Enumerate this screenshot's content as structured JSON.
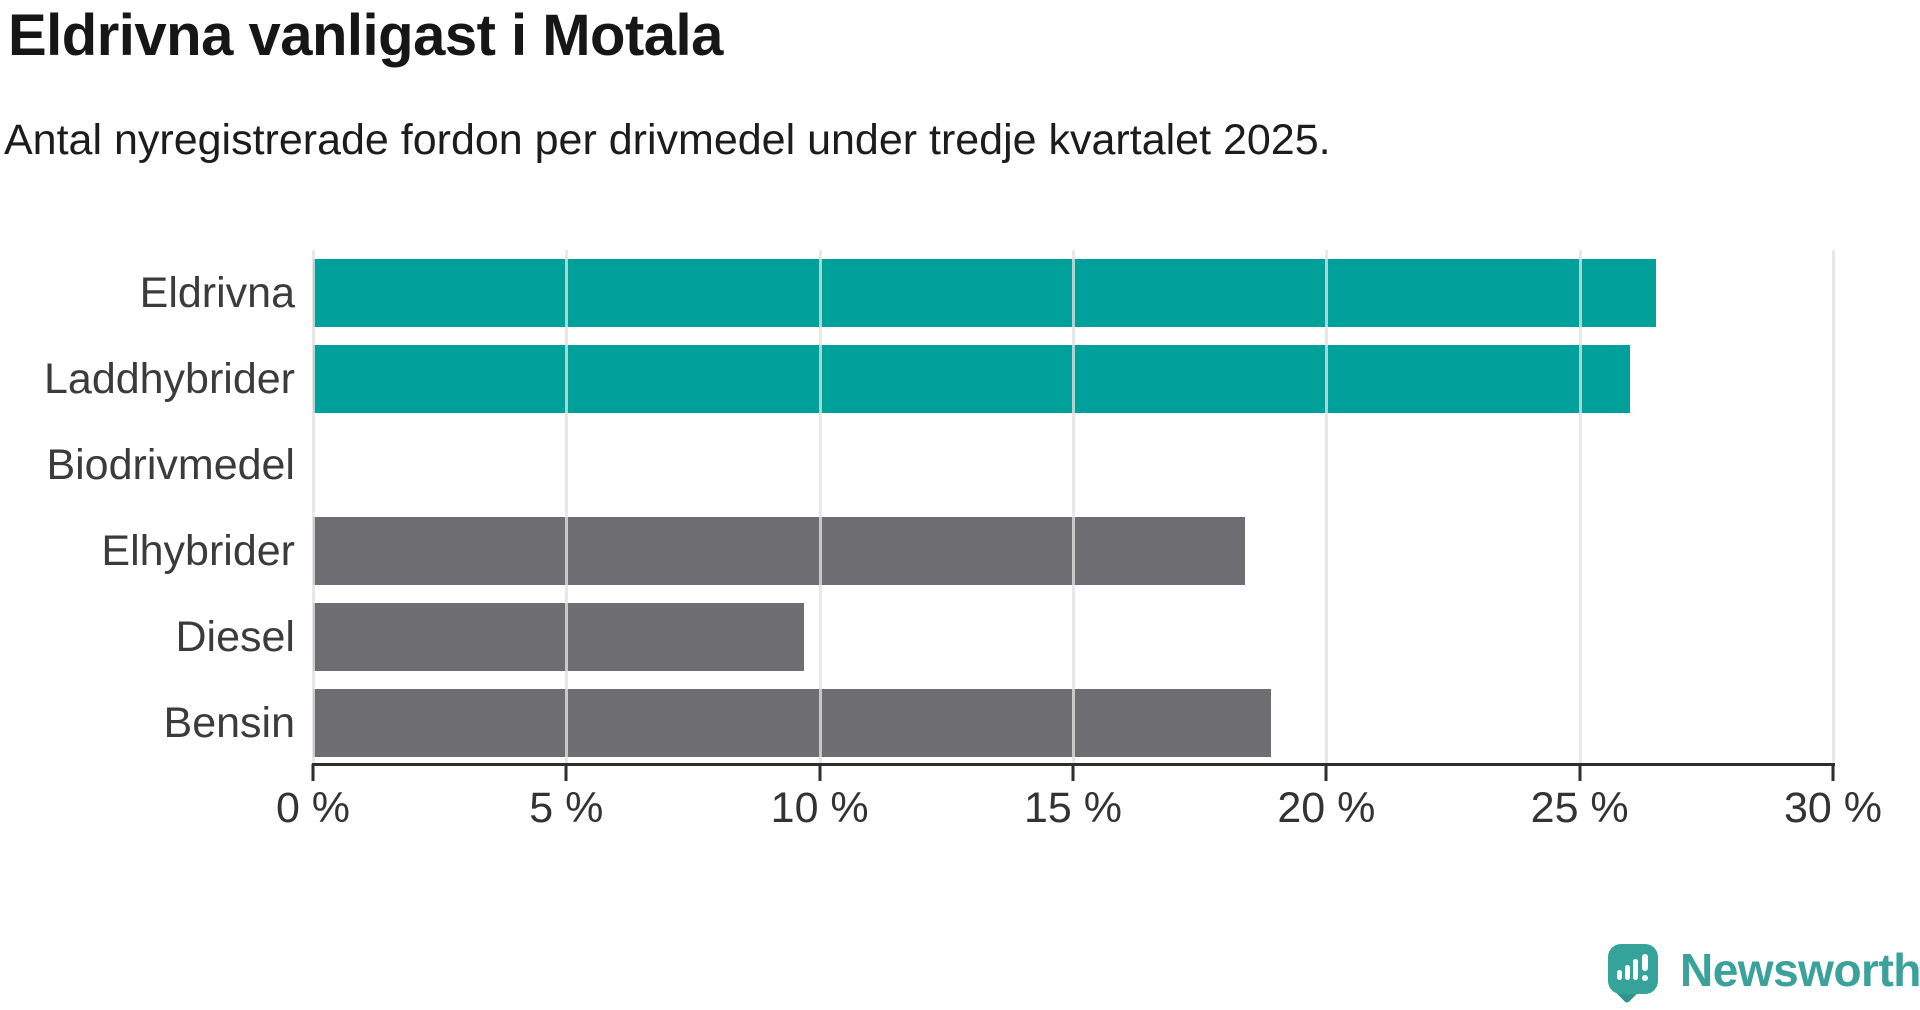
{
  "header": {
    "title": "Eldrivna vanligast i Motala",
    "subtitle": "Antal nyregistrerade fordon per drivmedel under tredje kvartalet 2025."
  },
  "chart_data": {
    "type": "bar",
    "orientation": "horizontal",
    "title": "Eldrivna vanligast i Motala",
    "subtitle": "Antal nyregistrerade fordon per drivmedel under tredje kvartalet 2025.",
    "categories": [
      "Eldrivna",
      "Laddhybrider",
      "Biodrivmedel",
      "Elhybrider",
      "Diesel",
      "Bensin"
    ],
    "values": [
      26.5,
      26.0,
      0,
      18.4,
      9.7,
      18.9
    ],
    "unit": "%",
    "xlim": [
      0,
      30
    ],
    "xticks": [
      0,
      5,
      10,
      15,
      20,
      25,
      30
    ],
    "xtick_labels": [
      "0 %",
      "5 %",
      "10 %",
      "15 %",
      "20 %",
      "25 %",
      "30 %"
    ],
    "bar_colors": [
      "#00A19A",
      "#00A19A",
      "#6D6D72",
      "#6D6D72",
      "#6D6D72",
      "#6D6D72"
    ],
    "highlight_color": "#00A19A",
    "default_color": "#6D6D72",
    "grid": true,
    "legend": "none"
  },
  "footer": {
    "brand": "Newsworthy",
    "brand_color": "#3AA29A",
    "logo_color": "#35A39A",
    "logo_tail_color": "#2E948C",
    "logo_icon": "newsworthy-speech-bubble-chart-icon"
  }
}
